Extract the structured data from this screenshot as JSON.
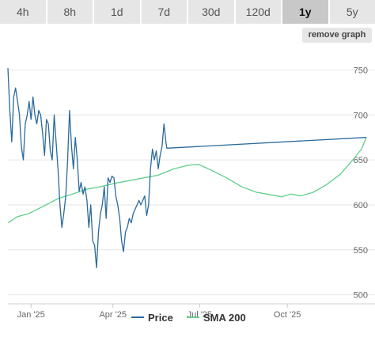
{
  "tabs": [
    {
      "label": "4h",
      "active": false
    },
    {
      "label": "8h",
      "active": false
    },
    {
      "label": "1d",
      "active": false
    },
    {
      "label": "7d",
      "active": false
    },
    {
      "label": "30d",
      "active": false
    },
    {
      "label": "120d",
      "active": false
    },
    {
      "label": "1y",
      "active": true
    },
    {
      "label": "5y",
      "active": false
    }
  ],
  "remove_graph_label": "remove graph",
  "colors": {
    "price": "#2b6a9c",
    "sma": "#5fd08a",
    "grid": "#e6e6e6"
  },
  "chart_data": {
    "type": "line",
    "x_start": "2024-12-15",
    "x_end": "2025-12-22",
    "xticks": [
      {
        "date": "2025-01-08",
        "label": "Jan '25"
      },
      {
        "date": "2025-04-03",
        "label": "Apr '25"
      },
      {
        "date": "2025-07-02",
        "label": "Jul '25"
      },
      {
        "date": "2025-10-01",
        "label": "Oct '25"
      }
    ],
    "ylim": [
      490,
      775
    ],
    "yticks": [
      500,
      550,
      600,
      650,
      700,
      750
    ],
    "grid": true,
    "legend": "bottom-center",
    "series": [
      {
        "name": "Price",
        "color": "#2b6a9c",
        "points": [
          [
            "2024-12-15",
            752
          ],
          [
            "2024-12-17",
            705
          ],
          [
            "2024-12-19",
            670
          ],
          [
            "2024-12-21",
            720
          ],
          [
            "2024-12-23",
            730
          ],
          [
            "2024-12-25",
            715
          ],
          [
            "2024-12-27",
            700
          ],
          [
            "2024-12-29",
            665
          ],
          [
            "2024-12-31",
            650
          ],
          [
            "2025-01-02",
            690
          ],
          [
            "2025-01-04",
            700
          ],
          [
            "2025-01-06",
            715
          ],
          [
            "2025-01-08",
            695
          ],
          [
            "2025-01-10",
            720
          ],
          [
            "2025-01-12",
            700
          ],
          [
            "2025-01-14",
            690
          ],
          [
            "2025-01-16",
            705
          ],
          [
            "2025-01-18",
            700
          ],
          [
            "2025-01-20",
            680
          ],
          [
            "2025-01-22",
            655
          ],
          [
            "2025-01-24",
            695
          ],
          [
            "2025-01-26",
            690
          ],
          [
            "2025-01-28",
            660
          ],
          [
            "2025-01-30",
            650
          ],
          [
            "2025-02-01",
            700
          ],
          [
            "2025-02-03",
            670
          ],
          [
            "2025-02-05",
            640
          ],
          [
            "2025-02-07",
            600
          ],
          [
            "2025-02-09",
            575
          ],
          [
            "2025-02-11",
            590
          ],
          [
            "2025-02-13",
            610
          ],
          [
            "2025-02-15",
            650
          ],
          [
            "2025-02-17",
            705
          ],
          [
            "2025-02-19",
            665
          ],
          [
            "2025-02-21",
            640
          ],
          [
            "2025-02-23",
            675
          ],
          [
            "2025-02-25",
            650
          ],
          [
            "2025-02-27",
            615
          ],
          [
            "2025-03-01",
            625
          ],
          [
            "2025-03-03",
            612
          ],
          [
            "2025-03-05",
            620
          ],
          [
            "2025-03-07",
            605
          ],
          [
            "2025-03-09",
            575
          ],
          [
            "2025-03-11",
            600
          ],
          [
            "2025-03-13",
            560
          ],
          [
            "2025-03-15",
            555
          ],
          [
            "2025-03-17",
            530
          ],
          [
            "2025-03-19",
            570
          ],
          [
            "2025-03-21",
            590
          ],
          [
            "2025-03-23",
            600
          ],
          [
            "2025-03-25",
            620
          ],
          [
            "2025-03-27",
            585
          ],
          [
            "2025-03-29",
            630
          ],
          [
            "2025-03-31",
            625
          ],
          [
            "2025-04-02",
            632
          ],
          [
            "2025-04-04",
            630
          ],
          [
            "2025-04-06",
            610
          ],
          [
            "2025-04-08",
            600
          ],
          [
            "2025-04-10",
            585
          ],
          [
            "2025-04-12",
            560
          ],
          [
            "2025-04-14",
            548
          ],
          [
            "2025-04-16",
            570
          ],
          [
            "2025-04-18",
            575
          ],
          [
            "2025-04-20",
            585
          ],
          [
            "2025-04-22",
            580
          ],
          [
            "2025-04-24",
            590
          ],
          [
            "2025-04-26",
            595
          ],
          [
            "2025-04-28",
            600
          ],
          [
            "2025-04-30",
            605
          ],
          [
            "2025-05-02",
            600
          ],
          [
            "2025-05-04",
            605
          ],
          [
            "2025-05-06",
            610
          ],
          [
            "2025-05-08",
            588
          ],
          [
            "2025-05-10",
            600
          ],
          [
            "2025-05-12",
            640
          ],
          [
            "2025-05-14",
            662
          ],
          [
            "2025-05-16",
            650
          ],
          [
            "2025-05-18",
            660
          ],
          [
            "2025-05-20",
            640
          ],
          [
            "2025-05-22",
            655
          ],
          [
            "2025-05-24",
            665
          ],
          [
            "2025-05-26",
            690
          ],
          [
            "2025-05-28",
            670
          ],
          [
            "2025-05-29",
            663
          ],
          [
            "2025-12-22",
            675
          ]
        ]
      },
      {
        "name": "SMA 200",
        "color": "#5fd08a",
        "points": [
          [
            "2024-12-15",
            580
          ],
          [
            "2024-12-25",
            587
          ],
          [
            "2025-01-05",
            590
          ],
          [
            "2025-01-20",
            598
          ],
          [
            "2025-02-05",
            607
          ],
          [
            "2025-02-20",
            612
          ],
          [
            "2025-03-05",
            617
          ],
          [
            "2025-03-20",
            620
          ],
          [
            "2025-04-05",
            624
          ],
          [
            "2025-04-20",
            627
          ],
          [
            "2025-05-05",
            630
          ],
          [
            "2025-05-20",
            633
          ],
          [
            "2025-06-05",
            640
          ],
          [
            "2025-06-20",
            644
          ],
          [
            "2025-07-01",
            645
          ],
          [
            "2025-07-15",
            638
          ],
          [
            "2025-07-30",
            630
          ],
          [
            "2025-08-15",
            620
          ],
          [
            "2025-08-30",
            614
          ],
          [
            "2025-09-10",
            612
          ],
          [
            "2025-09-25",
            609
          ],
          [
            "2025-10-05",
            612
          ],
          [
            "2025-10-15",
            610
          ],
          [
            "2025-10-28",
            614
          ],
          [
            "2025-11-10",
            622
          ],
          [
            "2025-11-25",
            634
          ],
          [
            "2025-12-08",
            650
          ],
          [
            "2025-12-17",
            662
          ],
          [
            "2025-12-22",
            675
          ]
        ]
      }
    ]
  }
}
